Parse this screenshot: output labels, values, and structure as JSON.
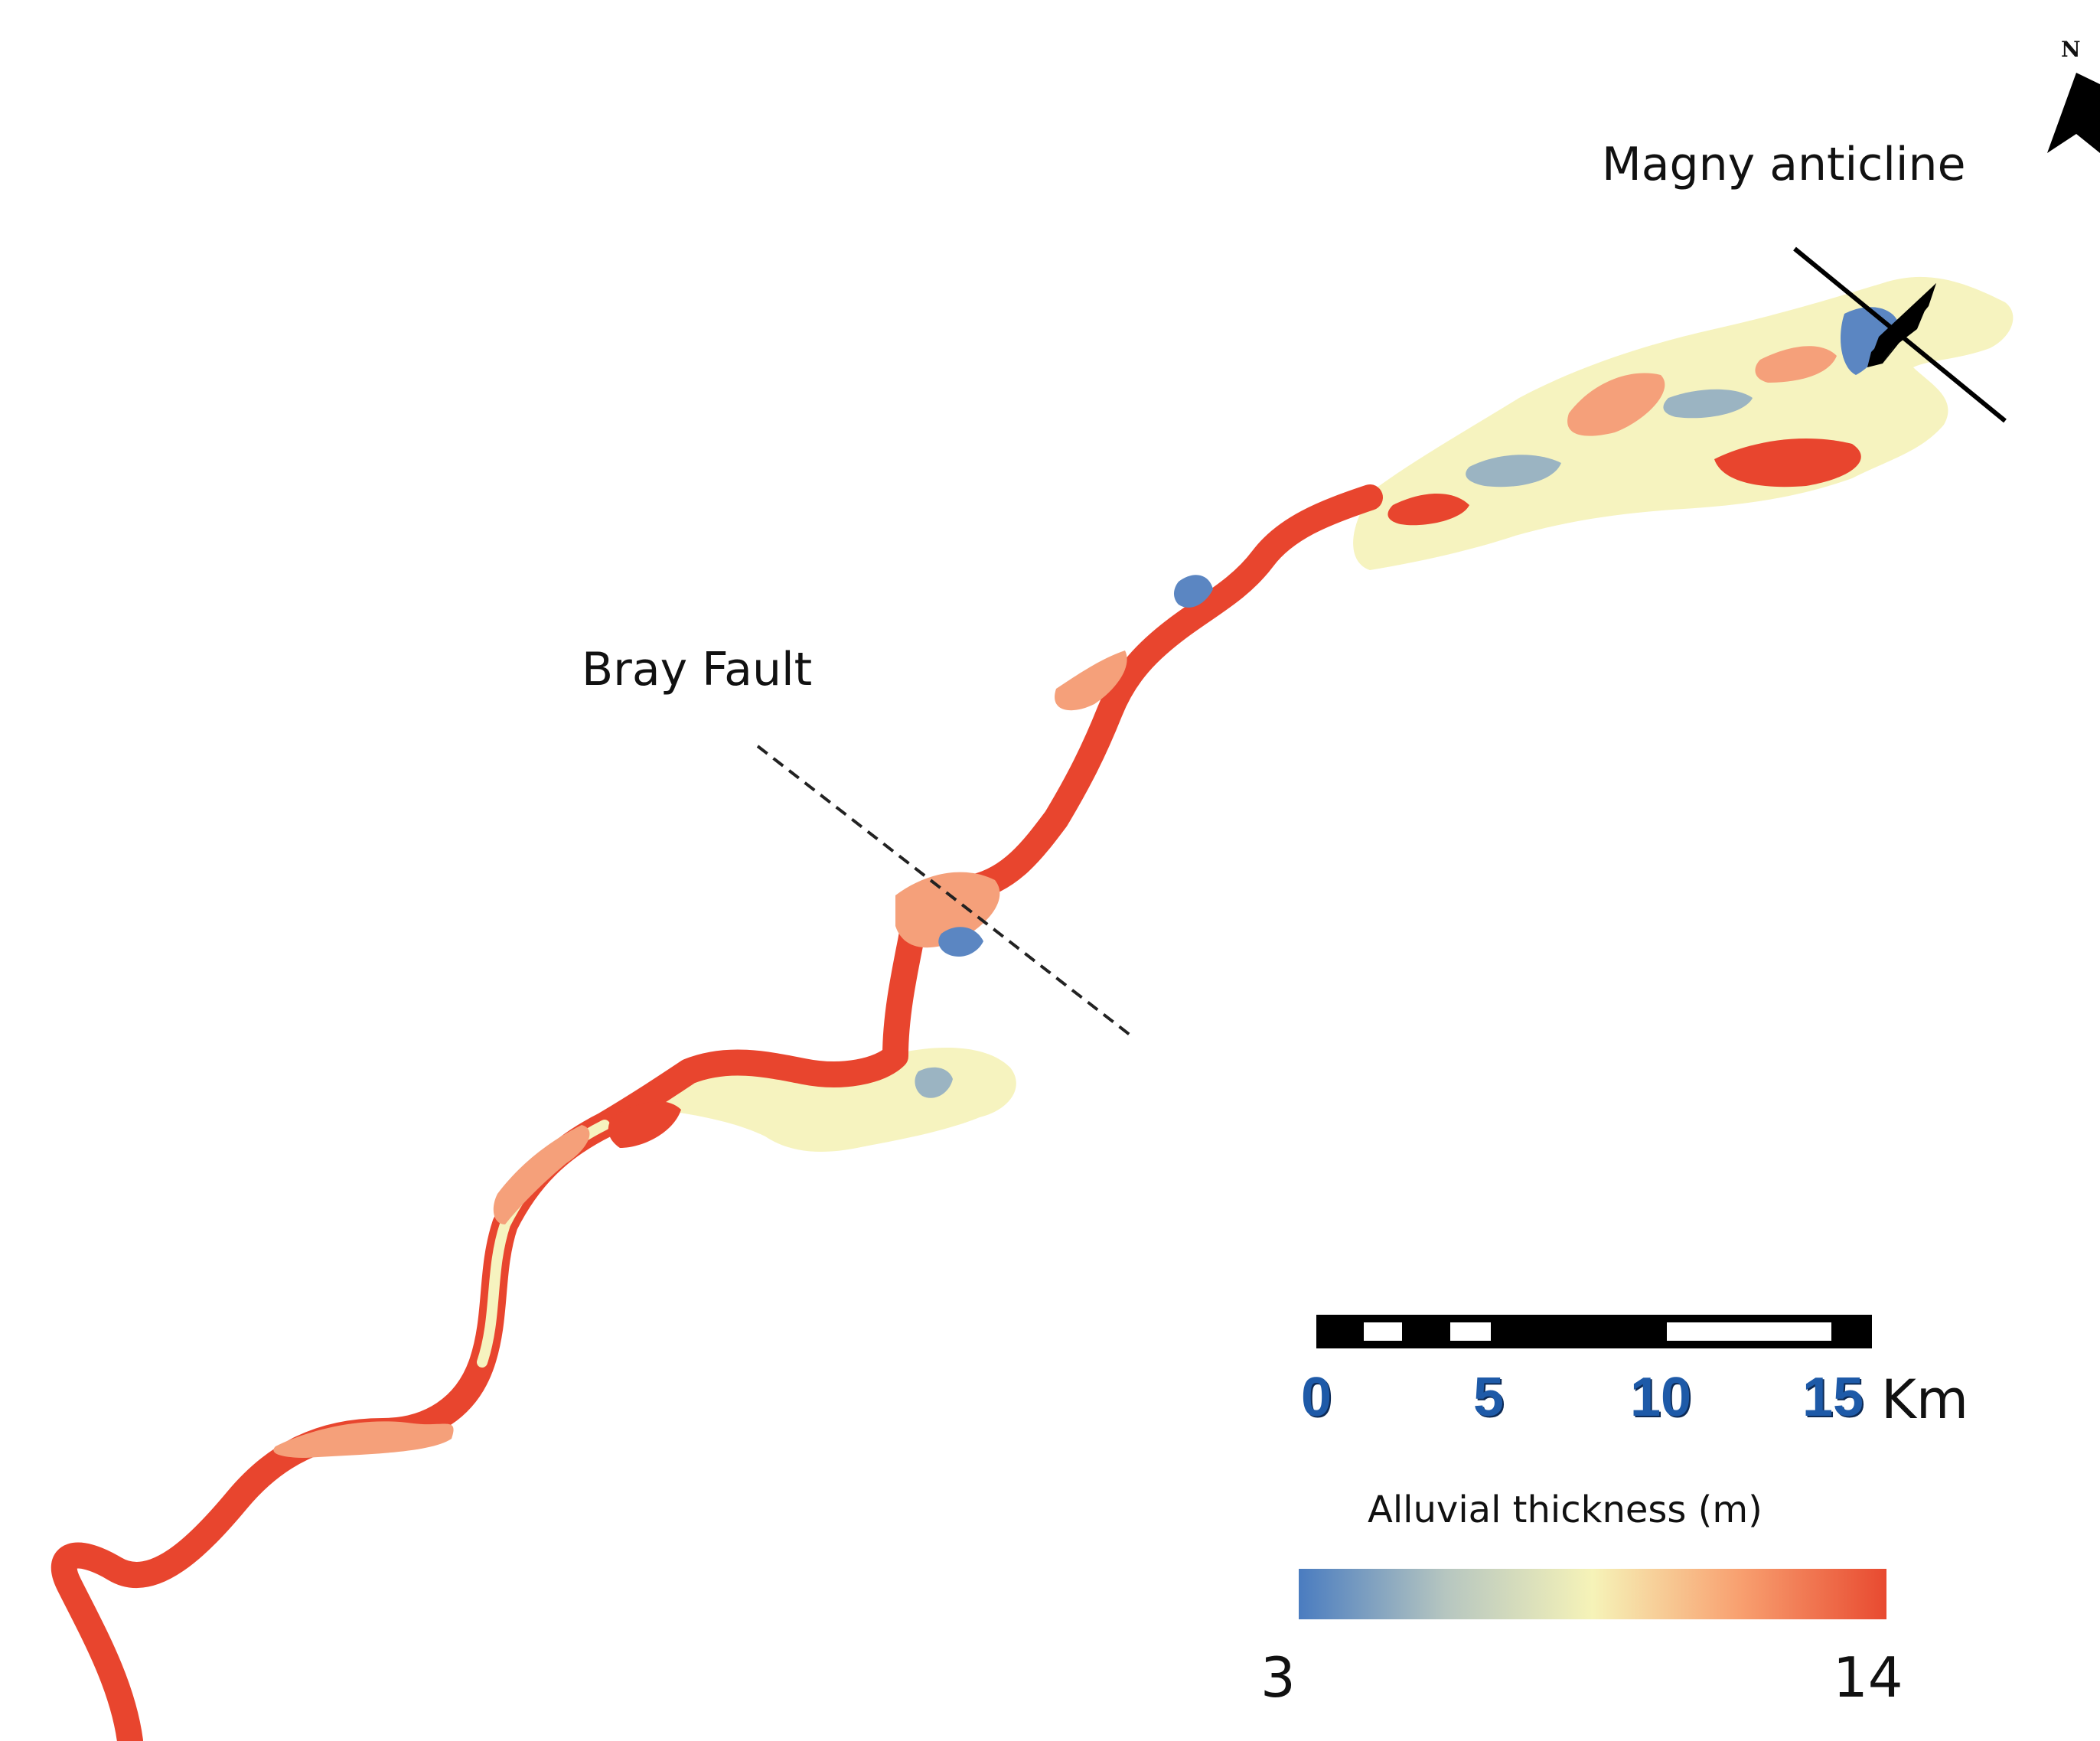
{
  "labels": {
    "magny": "Magny anticline",
    "bray": "Bray Fault",
    "north": "N"
  },
  "scale_bar": {
    "ticks": [
      "0",
      "5",
      "10",
      "15"
    ],
    "unit": "Km",
    "tick_color": "#1e5aa8"
  },
  "legend": {
    "title": "Alluvial thickness (m)",
    "min": "3",
    "max": "14",
    "colors": [
      "#4a7cc0",
      "#b6c6c0",
      "#f6f3b8",
      "#f8a070",
      "#e84a30"
    ]
  },
  "colors": {
    "high": "#e8452e",
    "mid_high": "#f5a07a",
    "low_mid": "#f6f3bf",
    "low": "#9bb4c2",
    "lowest": "#5b86c2"
  },
  "icons": [
    "north-arrow-icon",
    "anticline-symbol-icon"
  ]
}
